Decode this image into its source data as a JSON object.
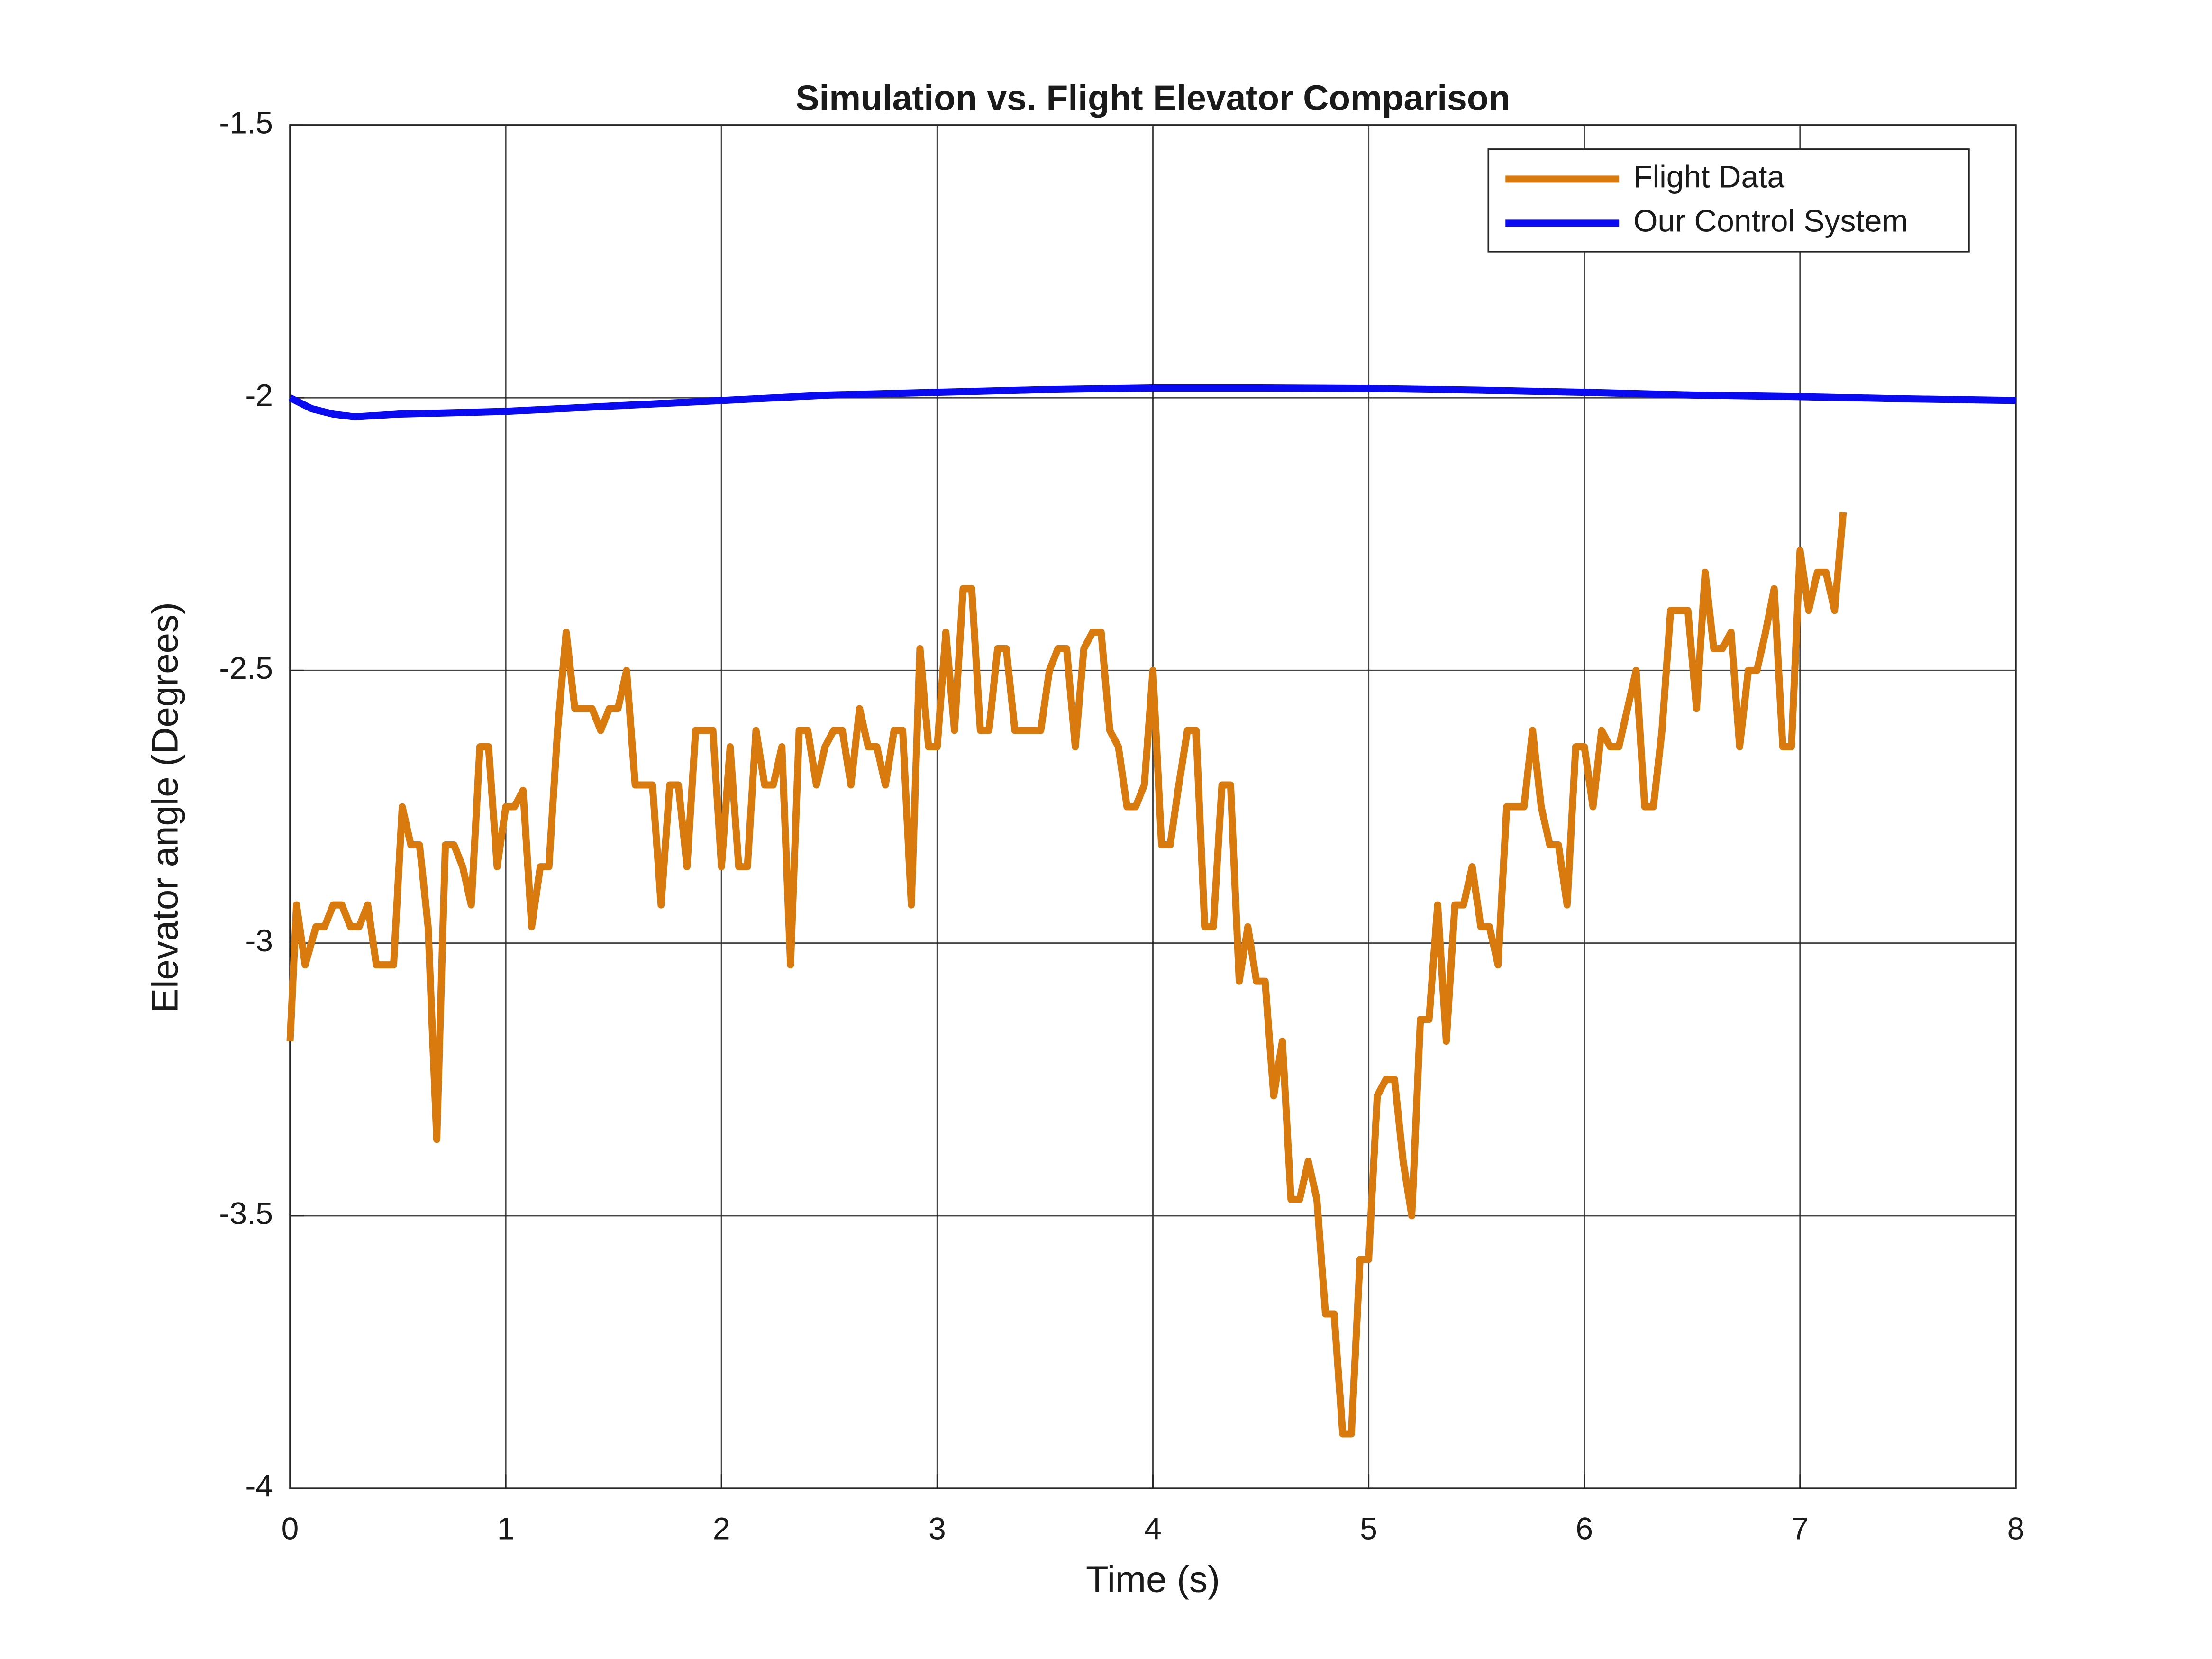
{
  "chart_data": {
    "type": "line",
    "title": "Simulation vs. Flight Elevator Comparison",
    "x_label": "Time (s)",
    "y_label": "Elevator angle (Degrees)",
    "xlim": [
      0,
      8
    ],
    "xticks": [
      0,
      1,
      2,
      3,
      4,
      5,
      6,
      7,
      8
    ],
    "ylim": [
      -4,
      -1.5
    ],
    "yticks": [
      -4,
      -3.5,
      -3,
      -2.5,
      -2,
      -1.5
    ],
    "grid": true,
    "legend": "upper right",
    "series": [
      {
        "name": "Flight Data",
        "color": "#d97a0f",
        "x": [
          0,
          0.03,
          0.07,
          0.12,
          0.16,
          0.2,
          0.24,
          0.28,
          0.32,
          0.36,
          0.4,
          0.48,
          0.52,
          0.56,
          0.6,
          0.64,
          0.68,
          0.72,
          0.76,
          0.8,
          0.84,
          0.88,
          0.92,
          0.96,
          1.0,
          1.04,
          1.08,
          1.12,
          1.16,
          1.2,
          1.24,
          1.28,
          1.32,
          1.4,
          1.44,
          1.48,
          1.52,
          1.56,
          1.6,
          1.68,
          1.72,
          1.76,
          1.8,
          1.84,
          1.88,
          1.96,
          2.0,
          2.04,
          2.08,
          2.12,
          2.16,
          2.2,
          2.24,
          2.28,
          2.32,
          2.36,
          2.4,
          2.44,
          2.48,
          2.52,
          2.56,
          2.6,
          2.64,
          2.68,
          2.72,
          2.76,
          2.8,
          2.84,
          2.88,
          2.92,
          2.96,
          3.0,
          3.04,
          3.08,
          3.12,
          3.16,
          3.2,
          3.24,
          3.28,
          3.32,
          3.36,
          3.48,
          3.52,
          3.56,
          3.6,
          3.64,
          3.68,
          3.72,
          3.76,
          3.8,
          3.84,
          3.88,
          3.92,
          3.96,
          4.0,
          4.04,
          4.08,
          4.12,
          4.16,
          4.2,
          4.24,
          4.28,
          4.32,
          4.36,
          4.4,
          4.44,
          4.48,
          4.52,
          4.56,
          4.6,
          4.64,
          4.68,
          4.72,
          4.76,
          4.8,
          4.84,
          4.88,
          4.92,
          4.96,
          5.0,
          5.04,
          5.08,
          5.12,
          5.16,
          5.2,
          5.24,
          5.28,
          5.32,
          5.36,
          5.4,
          5.44,
          5.48,
          5.52,
          5.56,
          5.6,
          5.64,
          5.72,
          5.76,
          5.8,
          5.84,
          5.88,
          5.92,
          5.96,
          6.0,
          6.04,
          6.08,
          6.12,
          6.16,
          6.2,
          6.24,
          6.28,
          6.32,
          6.36,
          6.4,
          6.48,
          6.52,
          6.56,
          6.6,
          6.64,
          6.68,
          6.72,
          6.76,
          6.8,
          6.84,
          6.88,
          6.92,
          6.96,
          7.0,
          7.04,
          7.08,
          7.12,
          7.16,
          7.2
        ],
        "values": [
          -3.18,
          -2.93,
          -3.04,
          -2.97,
          -2.97,
          -2.93,
          -2.93,
          -2.97,
          -2.97,
          -2.93,
          -3.04,
          -3.04,
          -2.75,
          -2.82,
          -2.82,
          -2.97,
          -3.36,
          -2.82,
          -2.82,
          -2.86,
          -2.93,
          -2.64,
          -2.64,
          -2.86,
          -2.75,
          -2.75,
          -2.72,
          -2.97,
          -2.86,
          -2.86,
          -2.61,
          -2.43,
          -2.57,
          -2.57,
          -2.61,
          -2.57,
          -2.57,
          -2.5,
          -2.71,
          -2.71,
          -2.93,
          -2.71,
          -2.71,
          -2.86,
          -2.61,
          -2.61,
          -2.86,
          -2.64,
          -2.86,
          -2.86,
          -2.61,
          -2.71,
          -2.71,
          -2.64,
          -3.04,
          -2.61,
          -2.61,
          -2.71,
          -2.64,
          -2.61,
          -2.61,
          -2.71,
          -2.57,
          -2.64,
          -2.64,
          -2.71,
          -2.61,
          -2.61,
          -2.93,
          -2.46,
          -2.64,
          -2.64,
          -2.43,
          -2.61,
          -2.35,
          -2.35,
          -2.61,
          -2.61,
          -2.46,
          -2.46,
          -2.61,
          -2.61,
          -2.5,
          -2.46,
          -2.46,
          -2.64,
          -2.46,
          -2.43,
          -2.43,
          -2.61,
          -2.64,
          -2.75,
          -2.75,
          -2.71,
          -2.5,
          -2.82,
          -2.82,
          -2.71,
          -2.61,
          -2.61,
          -2.97,
          -2.97,
          -2.71,
          -2.71,
          -3.07,
          -2.97,
          -3.07,
          -3.07,
          -3.28,
          -3.18,
          -3.47,
          -3.47,
          -3.4,
          -3.47,
          -3.68,
          -3.68,
          -3.9,
          -3.9,
          -3.58,
          -3.58,
          -3.28,
          -3.25,
          -3.25,
          -3.4,
          -3.5,
          -3.14,
          -3.14,
          -2.93,
          -3.18,
          -2.93,
          -2.93,
          -2.86,
          -2.97,
          -2.97,
          -3.04,
          -2.75,
          -2.75,
          -2.61,
          -2.75,
          -2.82,
          -2.82,
          -2.93,
          -2.64,
          -2.64,
          -2.75,
          -2.61,
          -2.64,
          -2.64,
          -2.57,
          -2.5,
          -2.75,
          -2.75,
          -2.61,
          -2.39,
          -2.39,
          -2.57,
          -2.32,
          -2.46,
          -2.46,
          -2.43,
          -2.64,
          -2.5,
          -2.5,
          -2.43,
          -2.35,
          -2.64,
          -2.64,
          -2.28,
          -2.39,
          -2.32,
          -2.32,
          -2.39,
          -2.21
        ]
      },
      {
        "name": "Our Control System",
        "color": "#0a0af0",
        "x": [
          0,
          0.1,
          0.2,
          0.3,
          0.5,
          1,
          1.5,
          2,
          2.5,
          3,
          3.5,
          4,
          4.5,
          5,
          5.5,
          6,
          6.5,
          7,
          7.5,
          8
        ],
        "values": [
          -2,
          -2.02,
          -2.03,
          -2.035,
          -2.03,
          -2.025,
          -2.015,
          -2.005,
          -1.995,
          -1.99,
          -1.985,
          -1.982,
          -1.982,
          -1.983,
          -1.986,
          -1.99,
          -1.995,
          -1.998,
          -2.002,
          -2.005
        ]
      }
    ]
  }
}
